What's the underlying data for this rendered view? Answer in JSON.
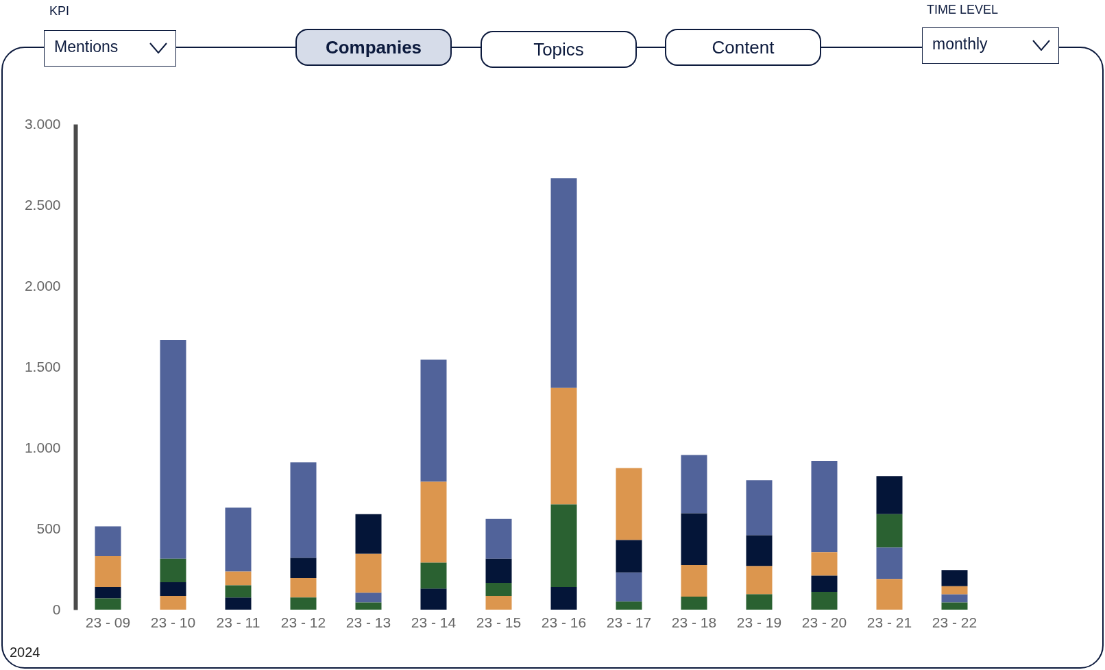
{
  "chart_data": {
    "type": "bar",
    "categories": [
      "23 - 09",
      "23 - 10",
      "23 - 11",
      "23 - 12",
      "23 - 13",
      "23 - 14",
      "23 - 15",
      "23 - 16",
      "23 - 17",
      "23 - 18",
      "23 - 19",
      "23 - 20",
      "23 - 21",
      "23 - 22"
    ],
    "ylim": [
      0,
      3000
    ],
    "yticks": [
      {
        "value": 0,
        "label": "0"
      },
      {
        "value": 500,
        "label": "500"
      },
      {
        "value": 1000,
        "label": "1.000"
      },
      {
        "value": 1500,
        "label": "1.500"
      },
      {
        "value": 2000,
        "label": "2.000"
      },
      {
        "value": 2500,
        "label": "2.500"
      },
      {
        "value": 3000,
        "label": "3.000"
      }
    ],
    "series": [
      {
        "color": "#51639a",
        "values": [
          185,
          1350,
          395,
          590,
          60,
          755,
          245,
          1295,
          180,
          360,
          340,
          565,
          195,
          50
        ],
        "base": [
          330,
          315,
          235,
          320,
          45,
          790,
          315,
          1370,
          50,
          595,
          460,
          355,
          190,
          45
        ]
      },
      {
        "color": "#dc964e",
        "values": [
          190,
          85,
          85,
          120,
          240,
          500,
          85,
          720,
          445,
          195,
          175,
          145,
          190,
          50
        ],
        "base": [
          140,
          0,
          150,
          75,
          105,
          290,
          0,
          650,
          430,
          80,
          95,
          210,
          0,
          95
        ]
      },
      {
        "color": "#041538",
        "values": [
          70,
          85,
          75,
          125,
          245,
          130,
          150,
          140,
          200,
          320,
          190,
          100,
          235,
          100
        ],
        "base": [
          70,
          85,
          0,
          195,
          345,
          0,
          165,
          0,
          230,
          275,
          270,
          110,
          590,
          145
        ]
      },
      {
        "color": "#2a6131",
        "values": [
          70,
          145,
          75,
          75,
          45,
          160,
          80,
          510,
          50,
          80,
          95,
          110,
          205,
          45
        ],
        "base": [
          0,
          170,
          75,
          0,
          0,
          130,
          85,
          140,
          0,
          0,
          0,
          0,
          385,
          0
        ]
      }
    ],
    "annotations": [
      "KPI",
      "Mentions",
      "Companies",
      "Topics",
      "Content",
      "TIME LEVEL",
      "monthly",
      "2024"
    ]
  }
}
